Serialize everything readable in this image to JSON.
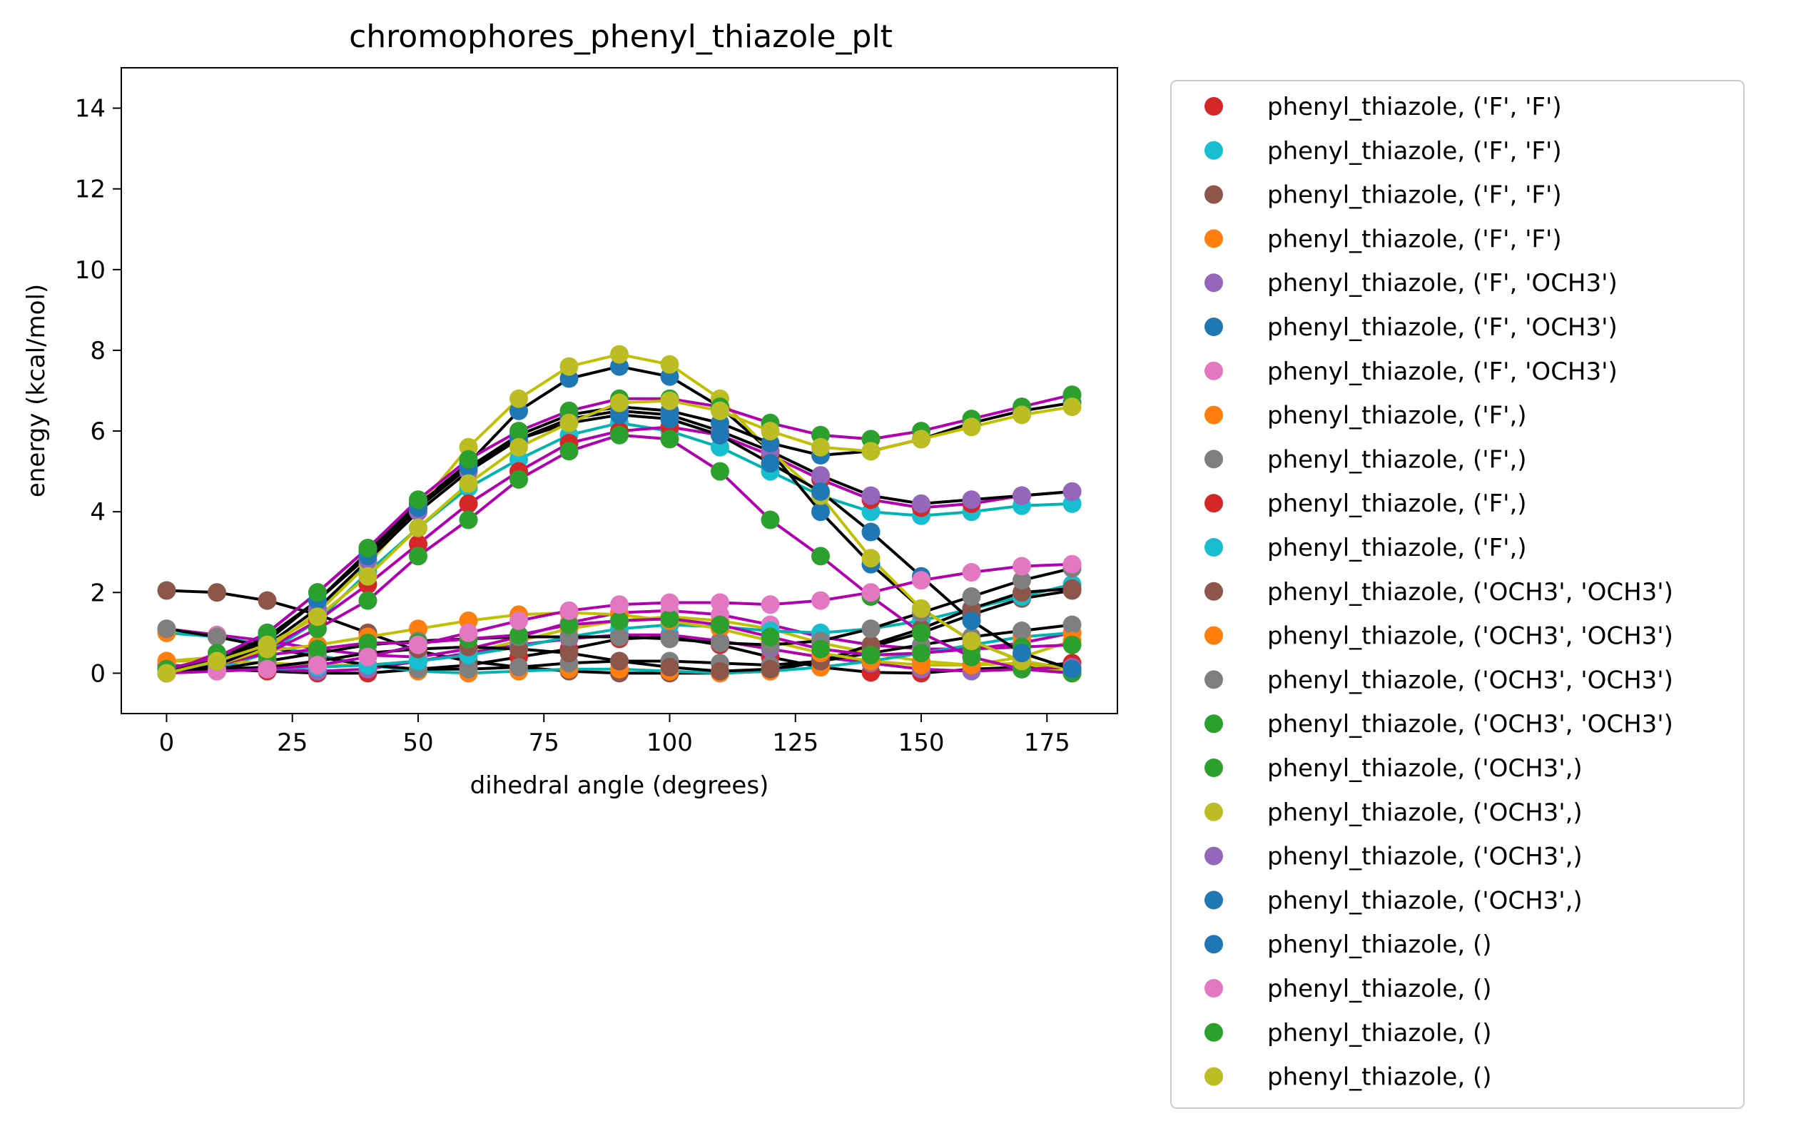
{
  "chart_data": {
    "type": "scatter",
    "title": "chromophores_phenyl_thiazole_plt",
    "xlabel": "dihedral angle (degrees)",
    "ylabel": "energy (kcal/mol)",
    "xlim": [
      -9,
      189
    ],
    "ylim": [
      -1,
      15
    ],
    "xticks": [
      0,
      25,
      50,
      75,
      100,
      125,
      150,
      175
    ],
    "yticks": [
      0,
      2,
      4,
      6,
      8,
      10,
      12,
      14
    ],
    "grid": false,
    "legend_position": "outside-right",
    "x": [
      0,
      10,
      20,
      30,
      40,
      50,
      60,
      70,
      80,
      90,
      100,
      110,
      120,
      130,
      140,
      150,
      160,
      170,
      180
    ],
    "series": [
      {
        "name": "phenyl_thiazole, ('F', 'F')",
        "color": "#d62728",
        "fit_color": "#000000",
        "values": [
          0.2,
          0.1,
          0.05,
          0.0,
          0.0,
          0.1,
          0.2,
          0.4,
          0.6,
          0.85,
          0.9,
          0.7,
          0.4,
          0.15,
          0.02,
          0.0,
          0.1,
          0.15,
          0.25
        ]
      },
      {
        "name": "phenyl_thiazole, ('F', 'F')",
        "color": "#17becf",
        "fit_color": "#00b3b3",
        "values": [
          0.0,
          0.1,
          0.5,
          1.3,
          2.5,
          3.6,
          4.6,
          5.3,
          5.9,
          6.2,
          6.0,
          5.6,
          5.0,
          4.4,
          4.0,
          3.9,
          4.0,
          4.15,
          4.2
        ]
      },
      {
        "name": "phenyl_thiazole, ('F', 'F')",
        "color": "#8c564b",
        "fit_color": "#000000",
        "values": [
          2.05,
          2.0,
          1.8,
          1.45,
          1.0,
          0.55,
          0.3,
          0.15,
          0.05,
          0.0,
          0.0,
          0.0,
          0.05,
          0.3,
          0.65,
          1.0,
          1.45,
          1.85,
          2.05
        ]
      },
      {
        "name": "phenyl_thiazole, ('F', 'F')",
        "color": "#ff7f0e",
        "fit_color": "#c0c000",
        "values": [
          0.3,
          0.3,
          0.25,
          0.2,
          0.2,
          0.3,
          0.5,
          0.8,
          1.1,
          1.3,
          1.4,
          1.3,
          1.1,
          0.75,
          0.5,
          0.3,
          0.2,
          0.25,
          0.0
        ]
      },
      {
        "name": "phenyl_thiazole, ('F', 'OCH3')",
        "color": "#9467bd",
        "fit_color": "#b000b0",
        "values": [
          0.2,
          0.15,
          0.1,
          0.05,
          0.1,
          0.3,
          0.5,
          0.7,
          0.85,
          0.95,
          0.95,
          0.8,
          0.6,
          0.4,
          0.25,
          0.1,
          0.05,
          0.1,
          0.15
        ]
      },
      {
        "name": "phenyl_thiazole, ('F', 'OCH3')",
        "color": "#1f77b4",
        "fit_color": "#000000",
        "values": [
          0.0,
          0.3,
          1.0,
          2.0,
          3.1,
          4.2,
          5.2,
          6.5,
          7.3,
          7.6,
          7.35,
          6.6,
          5.5,
          4.0,
          2.7,
          1.6,
          0.8,
          0.3,
          0.1
        ]
      },
      {
        "name": "phenyl_thiazole, ('F', 'OCH3')",
        "color": "#e377c2",
        "fit_color": "#b000b0",
        "values": [
          1.1,
          0.95,
          0.8,
          0.6,
          0.45,
          0.4,
          0.6,
          0.9,
          1.25,
          1.5,
          1.55,
          1.45,
          1.2,
          0.9,
          0.7,
          0.6,
          0.6,
          0.75,
          1.0
        ]
      },
      {
        "name": "phenyl_thiazole, ('F',)",
        "color": "#ff7f0e",
        "fit_color": "#00b3b3",
        "values": [
          1.0,
          0.9,
          0.7,
          0.45,
          0.2,
          0.05,
          0.0,
          0.05,
          0.1,
          0.1,
          0.05,
          0.0,
          0.05,
          0.15,
          0.3,
          0.5,
          0.7,
          0.9,
          1.0
        ]
      },
      {
        "name": "phenyl_thiazole, ('F',)",
        "color": "#7f7f7f",
        "fit_color": "#000000",
        "values": [
          1.1,
          0.9,
          0.65,
          0.4,
          0.2,
          0.1,
          0.1,
          0.15,
          0.25,
          0.3,
          0.3,
          0.25,
          0.2,
          0.3,
          0.5,
          0.7,
          0.9,
          1.05,
          1.2
        ]
      },
      {
        "name": "phenyl_thiazole, ('F',)",
        "color": "#d62728",
        "fit_color": "#b000b0",
        "values": [
          0.0,
          0.2,
          0.6,
          1.3,
          2.2,
          3.2,
          4.2,
          5.0,
          5.7,
          6.0,
          6.1,
          5.9,
          5.4,
          4.8,
          4.3,
          4.1,
          4.2,
          4.4,
          4.5
        ]
      },
      {
        "name": "phenyl_thiazole, ('F',)",
        "color": "#17becf",
        "fit_color": "#00b3b3",
        "values": [
          0.05,
          0.05,
          0.1,
          0.15,
          0.2,
          0.3,
          0.45,
          0.65,
          0.9,
          1.1,
          1.2,
          1.15,
          1.05,
          1.0,
          1.1,
          1.3,
          1.6,
          1.9,
          2.2
        ]
      },
      {
        "name": "phenyl_thiazole, ('OCH3', 'OCH3')",
        "color": "#8c564b",
        "fit_color": "#000000",
        "values": [
          0.1,
          0.1,
          0.15,
          0.3,
          0.5,
          0.6,
          0.65,
          0.6,
          0.5,
          0.3,
          0.15,
          0.05,
          0.1,
          0.3,
          0.7,
          1.1,
          1.6,
          2.0,
          2.1
        ]
      },
      {
        "name": "phenyl_thiazole, ('OCH3', 'OCH3')",
        "color": "#ff7f0e",
        "fit_color": "#c0c000",
        "values": [
          0.3,
          0.4,
          0.55,
          0.7,
          0.9,
          1.1,
          1.3,
          1.45,
          1.5,
          1.45,
          1.3,
          1.1,
          0.8,
          0.5,
          0.3,
          0.2,
          0.2,
          0.4,
          0.8
        ]
      },
      {
        "name": "phenyl_thiazole, ('OCH3', 'OCH3')",
        "color": "#7f7f7f",
        "fit_color": "#000000",
        "values": [
          0.0,
          0.1,
          0.3,
          0.5,
          0.7,
          0.8,
          0.85,
          0.9,
          0.9,
          0.9,
          0.85,
          0.75,
          0.7,
          0.8,
          1.1,
          1.5,
          1.9,
          2.3,
          2.6
        ]
      },
      {
        "name": "phenyl_thiazole, ('OCH3', 'OCH3')",
        "color": "#2ca02c",
        "fit_color": "#b000b0",
        "values": [
          0.0,
          0.5,
          0.45,
          0.6,
          0.75,
          0.75,
          0.85,
          0.95,
          1.2,
          1.3,
          1.35,
          1.2,
          0.9,
          0.6,
          0.45,
          0.5,
          0.6,
          0.65,
          0.7
        ]
      },
      {
        "name": "phenyl_thiazole, ('OCH3',)",
        "color": "#2ca02c",
        "fit_color": "#b000b0",
        "values": [
          0.1,
          0.2,
          0.5,
          1.1,
          1.8,
          2.9,
          3.8,
          4.8,
          5.5,
          5.9,
          5.8,
          5.0,
          3.8,
          2.9,
          1.9,
          1.0,
          0.4,
          0.1,
          0.0
        ]
      },
      {
        "name": "phenyl_thiazole, ('OCH3',)",
        "color": "#bcbd22",
        "fit_color": "#c0c000",
        "values": [
          0.1,
          0.2,
          0.6,
          1.5,
          2.7,
          4.1,
          5.6,
          6.8,
          7.6,
          7.9,
          7.65,
          6.8,
          5.5,
          4.4,
          2.85,
          1.6,
          0.8,
          0.3,
          0.1
        ]
      },
      {
        "name": "phenyl_thiazole, ('OCH3',)",
        "color": "#9467bd",
        "fit_color": "#000000",
        "values": [
          0.0,
          0.2,
          0.7,
          1.6,
          2.8,
          4.0,
          5.0,
          5.8,
          6.3,
          6.5,
          6.4,
          6.0,
          5.5,
          4.9,
          4.4,
          4.2,
          4.3,
          4.4,
          4.5
        ]
      },
      {
        "name": "phenyl_thiazole, ('OCH3',)",
        "color": "#1f77b4",
        "fit_color": "#000000",
        "values": [
          0.0,
          0.3,
          0.9,
          1.8,
          2.9,
          4.1,
          5.1,
          5.9,
          6.4,
          6.6,
          6.5,
          6.2,
          5.7,
          5.4,
          5.5,
          5.8,
          6.2,
          6.5,
          6.7
        ]
      },
      {
        "name": "phenyl_thiazole, ()",
        "color": "#1f77b4",
        "fit_color": "#000000",
        "values": [
          0.1,
          0.3,
          0.8,
          1.8,
          3.0,
          4.2,
          5.1,
          5.8,
          6.2,
          6.4,
          6.3,
          5.9,
          5.2,
          4.5,
          3.5,
          2.4,
          1.3,
          0.5,
          0.1
        ]
      },
      {
        "name": "phenyl_thiazole, ()",
        "color": "#e377c2",
        "fit_color": "#b000b0",
        "values": [
          0.0,
          0.05,
          0.1,
          0.2,
          0.4,
          0.7,
          1.0,
          1.3,
          1.55,
          1.7,
          1.75,
          1.75,
          1.7,
          1.8,
          2.0,
          2.3,
          2.5,
          2.65,
          2.7
        ]
      },
      {
        "name": "phenyl_thiazole, ()",
        "color": "#2ca02c",
        "fit_color": "#b000b0",
        "values": [
          0.1,
          0.4,
          1.0,
          2.0,
          3.1,
          4.3,
          5.3,
          6.0,
          6.5,
          6.8,
          6.8,
          6.6,
          6.2,
          5.9,
          5.8,
          6.0,
          6.3,
          6.6,
          6.9
        ]
      },
      {
        "name": "phenyl_thiazole, ()",
        "color": "#bcbd22",
        "fit_color": "#c0c000",
        "values": [
          0.0,
          0.3,
          0.7,
          1.4,
          2.4,
          3.6,
          4.7,
          5.6,
          6.2,
          6.7,
          6.75,
          6.5,
          6.0,
          5.6,
          5.5,
          5.8,
          6.1,
          6.4,
          6.6
        ]
      }
    ]
  }
}
